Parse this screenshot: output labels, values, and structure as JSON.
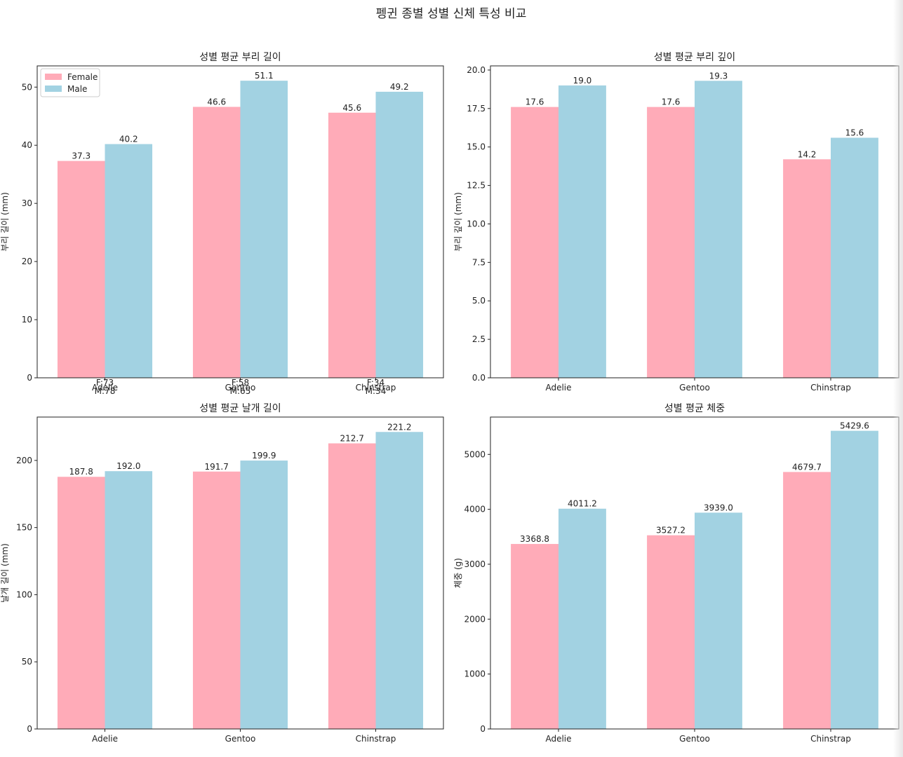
{
  "figure_title": "펭귄 종별 성별 신체 특성 비교",
  "colors": {
    "female": "#ffabb8",
    "male": "#a2d2e2"
  },
  "chart_data": [
    {
      "type": "bar",
      "title": "성별 평균 부리 길이",
      "ylabel": "부리 길이 (mm)",
      "xlabel": "",
      "categories": [
        "Adelie",
        "Gentoo",
        "Chinstrap"
      ],
      "count_labels": [
        [
          "F:73",
          "M:78"
        ],
        [
          "F:58",
          "M:65"
        ],
        [
          "F:34",
          "M:34"
        ]
      ],
      "series": [
        {
          "name": "Female",
          "values": [
            37.3,
            46.6,
            45.6
          ],
          "labels": [
            "37.3",
            "46.6",
            "45.6"
          ]
        },
        {
          "name": "Male",
          "values": [
            40.2,
            51.1,
            49.2
          ],
          "labels": [
            "40.2",
            "51.1",
            "49.2"
          ]
        }
      ],
      "ylim": [
        0,
        53.65
      ],
      "yticks": [
        0,
        10,
        20,
        30,
        40,
        50
      ],
      "ytick_labels": [
        "0",
        "10",
        "20",
        "30",
        "40",
        "50"
      ],
      "legend": {
        "position": "top-left",
        "entries": [
          "Female",
          "Male"
        ]
      },
      "grid": false
    },
    {
      "type": "bar",
      "title": "성별 평균 부리 깊이",
      "ylabel": "부리 깊이 (mm)",
      "xlabel": "",
      "categories": [
        "Adelie",
        "Gentoo",
        "Chinstrap"
      ],
      "series": [
        {
          "name": "Female",
          "values": [
            17.6,
            17.6,
            14.2
          ],
          "labels": [
            "17.6",
            "17.6",
            "14.2"
          ]
        },
        {
          "name": "Male",
          "values": [
            19.0,
            19.3,
            15.6
          ],
          "labels": [
            "19.0",
            "19.3",
            "15.6"
          ]
        }
      ],
      "ylim": [
        0,
        20.27
      ],
      "yticks": [
        0,
        2.5,
        5,
        7.5,
        10,
        12.5,
        15,
        17.5,
        20
      ],
      "ytick_labels": [
        "0.0",
        "2.5",
        "5.0",
        "7.5",
        "10.0",
        "12.5",
        "15.0",
        "17.5",
        "20.0"
      ],
      "grid": false
    },
    {
      "type": "bar",
      "title": "성별 평균 날개 길이",
      "ylabel": "날개 길이 (mm)",
      "xlabel": "",
      "categories": [
        "Adelie",
        "Gentoo",
        "Chinstrap"
      ],
      "series": [
        {
          "name": "Female",
          "values": [
            187.8,
            191.7,
            212.7
          ],
          "labels": [
            "187.8",
            "191.7",
            "212.7"
          ]
        },
        {
          "name": "Male",
          "values": [
            192.0,
            199.9,
            221.2
          ],
          "labels": [
            "192.0",
            "199.9",
            "221.2"
          ]
        }
      ],
      "ylim": [
        0,
        232.3
      ],
      "yticks": [
        0,
        50,
        100,
        150,
        200
      ],
      "ytick_labels": [
        "0",
        "50",
        "100",
        "150",
        "200"
      ],
      "grid": false
    },
    {
      "type": "bar",
      "title": "성별 평균 체중",
      "ylabel": "체중 (g)",
      "xlabel": "",
      "categories": [
        "Adelie",
        "Gentoo",
        "Chinstrap"
      ],
      "series": [
        {
          "name": "Female",
          "values": [
            3368.8,
            3527.2,
            4679.7
          ],
          "labels": [
            "3368.8",
            "3527.2",
            "4679.7"
          ]
        },
        {
          "name": "Male",
          "values": [
            4011.2,
            3939.0,
            5429.6
          ],
          "labels": [
            "4011.2",
            "3939.0",
            "5429.6"
          ]
        }
      ],
      "ylim": [
        0,
        5680
      ],
      "yticks": [
        0,
        1000,
        2000,
        3000,
        4000,
        5000
      ],
      "ytick_labels": [
        "0",
        "1000",
        "2000",
        "3000",
        "4000",
        "5000"
      ],
      "grid": false
    }
  ]
}
